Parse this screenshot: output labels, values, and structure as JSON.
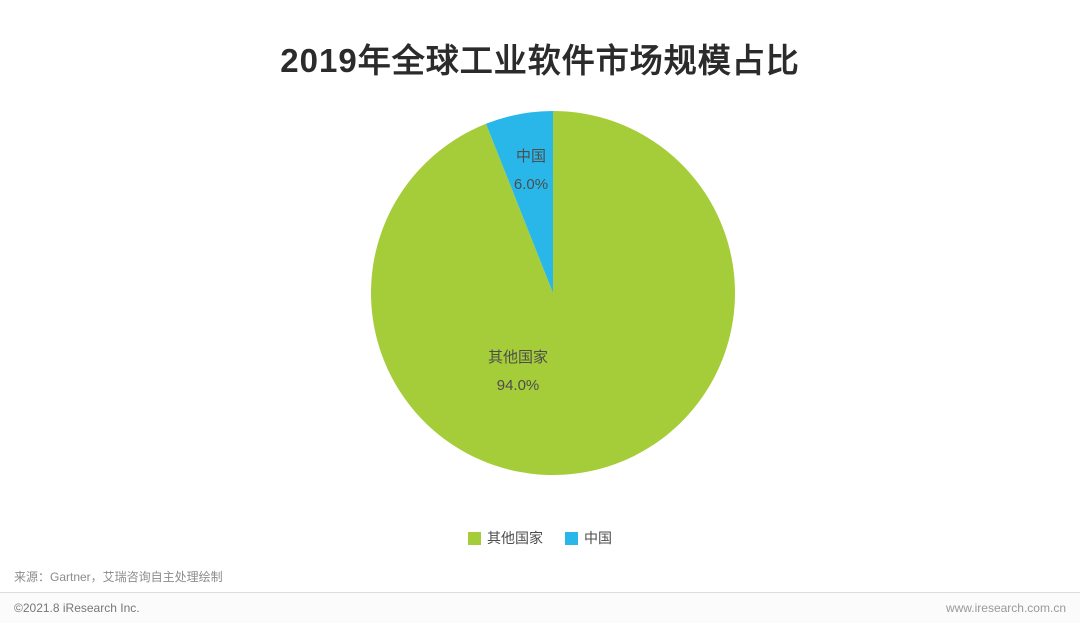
{
  "chart_data": {
    "type": "pie",
    "title": "2019年全球工业软件市场规模占比",
    "start_angle_deg": 0,
    "direction": "clockwise",
    "legend_position": "bottom",
    "slices": [
      {
        "label": "其他国家",
        "value": 94.0,
        "value_label": "94.0%",
        "color": "#a5cd39"
      },
      {
        "label": "中国",
        "value": 6.0,
        "value_label": "6.0%",
        "color": "#29b7ea"
      }
    ]
  },
  "footer": {
    "source": "来源：Gartner，艾瑞咨询自主处理绘制",
    "copyright": "©2021.8 iResearch Inc.",
    "website": "www.iresearch.com.cn"
  }
}
